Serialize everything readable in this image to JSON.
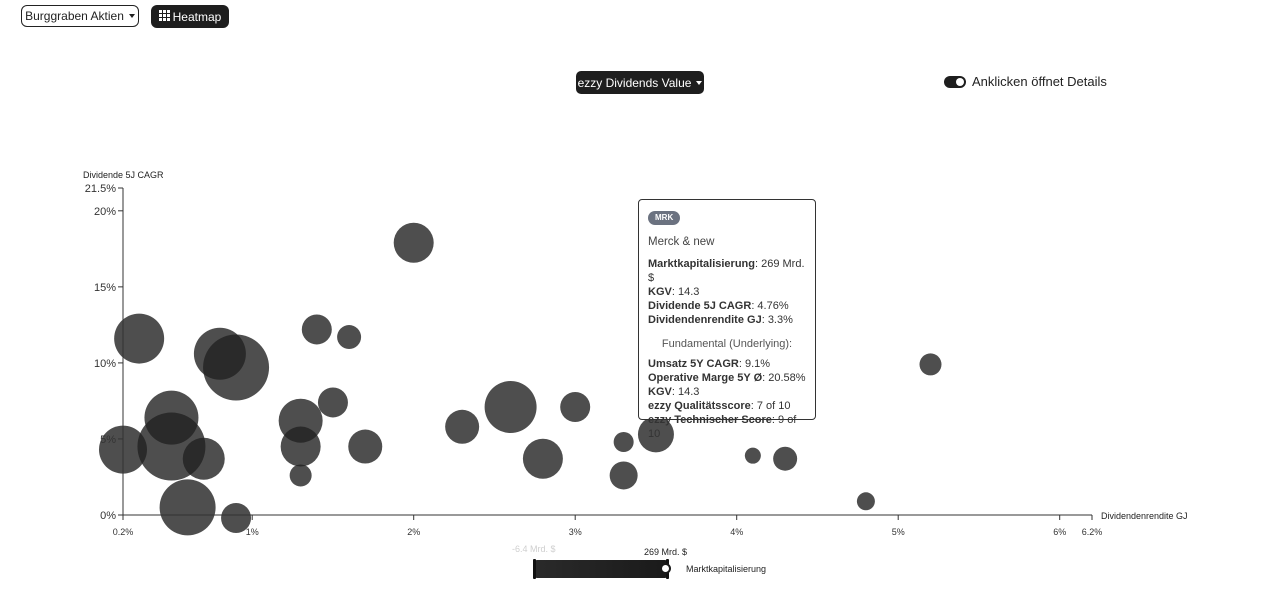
{
  "header": {
    "watchlist_label": "Burggraben Aktien",
    "heatmap_label": "Heatmap"
  },
  "controls": {
    "metric_label": "ezzy Dividends Value",
    "toggle_label": "Anklicken öffnet Details",
    "toggle_on": true
  },
  "chart_data": {
    "type": "scatter",
    "xlabel": "Dividendenrendite GJ",
    "ylabel": "Dividende 5J CAGR",
    "xlim": [
      0.2,
      6.2
    ],
    "ylim": [
      0,
      21.5
    ],
    "x_ticks": [
      {
        "value": 0.2,
        "label": "0.2%"
      },
      {
        "value": 1,
        "label": "1%"
      },
      {
        "value": 2,
        "label": "2%"
      },
      {
        "value": 3,
        "label": "3%"
      },
      {
        "value": 4,
        "label": "4%"
      },
      {
        "value": 5,
        "label": "5%"
      },
      {
        "value": 6,
        "label": "6%"
      },
      {
        "value": 6.2,
        "label": "6.2%"
      }
    ],
    "y_ticks": [
      {
        "value": 0,
        "label": "0%"
      },
      {
        "value": 5,
        "label": "5%"
      },
      {
        "value": 10,
        "label": "10%"
      },
      {
        "value": 15,
        "label": "15%"
      },
      {
        "value": 20,
        "label": "20%"
      },
      {
        "value": 21.5,
        "label": "21.5%"
      }
    ],
    "points": [
      {
        "x": 0.2,
        "y": 4.3,
        "size": 24
      },
      {
        "x": 0.3,
        "y": 11.6,
        "size": 25
      },
      {
        "x": 0.5,
        "y": 6.4,
        "size": 27
      },
      {
        "x": 0.5,
        "y": 4.5,
        "size": 34
      },
      {
        "x": 0.6,
        "y": 0.5,
        "size": 28
      },
      {
        "x": 0.7,
        "y": 3.7,
        "size": 21
      },
      {
        "x": 0.8,
        "y": 10.6,
        "size": 26
      },
      {
        "x": 0.9,
        "y": 9.7,
        "size": 33
      },
      {
        "x": 0.9,
        "y": -0.2,
        "size": 15
      },
      {
        "x": 1.3,
        "y": 6.2,
        "size": 22
      },
      {
        "x": 1.3,
        "y": 4.5,
        "size": 20
      },
      {
        "x": 1.3,
        "y": 2.6,
        "size": 11
      },
      {
        "x": 1.4,
        "y": 12.2,
        "size": 15
      },
      {
        "x": 1.5,
        "y": 7.4,
        "size": 15
      },
      {
        "x": 1.6,
        "y": 11.7,
        "size": 12
      },
      {
        "x": 1.7,
        "y": 4.5,
        "size": 17
      },
      {
        "x": 2.0,
        "y": 17.9,
        "size": 20
      },
      {
        "x": 2.3,
        "y": 5.8,
        "size": 17
      },
      {
        "x": 2.6,
        "y": 7.1,
        "size": 26
      },
      {
        "x": 2.8,
        "y": 3.7,
        "size": 20
      },
      {
        "x": 3.0,
        "y": 7.1,
        "size": 15
      },
      {
        "x": 3.3,
        "y": 4.8,
        "size": 10
      },
      {
        "x": 3.3,
        "y": 2.6,
        "size": 14
      },
      {
        "x": 3.5,
        "y": 5.3,
        "size": 18
      },
      {
        "x": 4.1,
        "y": 3.9,
        "size": 8
      },
      {
        "x": 4.3,
        "y": 3.7,
        "size": 12
      },
      {
        "x": 4.8,
        "y": 0.9,
        "size": 9
      },
      {
        "x": 5.2,
        "y": 9.9,
        "size": 11
      }
    ]
  },
  "tooltip": {
    "ticker": "MRK",
    "company": "Merck & new",
    "rows": [
      {
        "label": "Marktkapitalisierung",
        "value": ": 269 Mrd. $"
      },
      {
        "label": "KGV",
        "value": ": 14.3"
      },
      {
        "label": "Dividende 5J CAGR",
        "value": ": 4.76%"
      },
      {
        "label": "Dividendenrendite GJ",
        "value": ": 3.3%"
      }
    ],
    "section_title": "Fundamental (Underlying):",
    "fundamental_rows": [
      {
        "label": "Umsatz 5Y CAGR",
        "value": ": 9.1%"
      },
      {
        "label": "Operative Marge 5Y Ø",
        "value": ": 20.58%"
      },
      {
        "label": "KGV",
        "value": ": 14.3"
      },
      {
        "label": "ezzy Qualitätsscore",
        "value": ": 7 of 10"
      },
      {
        "label": "ezzy Technischer Score",
        "value": ": 9 of 10"
      }
    ]
  },
  "slider": {
    "min_label": "-6.4 Mrd. $",
    "max_label": "269 Mrd. $",
    "label": "Marktkapitalisierung",
    "range_fraction": [
      0,
      1
    ]
  },
  "colors": {
    "bubble": "#222222",
    "axis": "#333333"
  }
}
